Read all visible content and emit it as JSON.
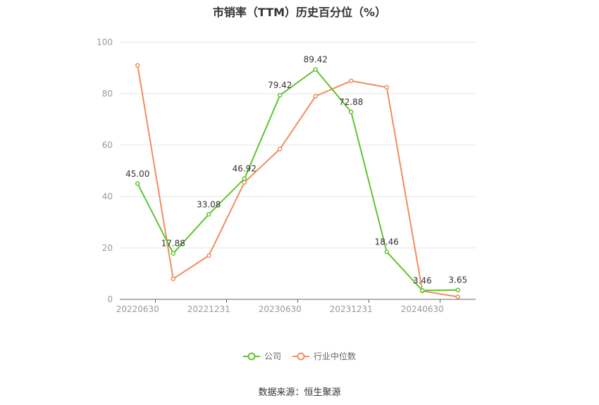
{
  "chart_data": {
    "type": "line",
    "title": "市销率（TTM）历史百分位（%）",
    "x": [
      "20220630",
      "20220930",
      "20221231",
      "20230331",
      "20230630",
      "20230930",
      "20231231",
      "20240331",
      "20240630",
      "20240930"
    ],
    "tick_labels": [
      "20220630",
      "20221231",
      "20230630",
      "20231231",
      "20240630"
    ],
    "y_ticks": [
      "0",
      "20",
      "40",
      "60",
      "80",
      "100"
    ],
    "ylim": [
      0,
      100
    ],
    "grid": true,
    "legend_position": "bottom-center",
    "series": [
      {
        "name": "公司",
        "color": "#5ec531",
        "values": [
          45.0,
          17.88,
          33.08,
          46.92,
          79.42,
          89.42,
          72.88,
          18.46,
          3.46,
          3.65
        ],
        "labels": [
          "45.00",
          "17.88",
          "33.08",
          "46.92",
          "79.42",
          "89.42",
          "72.88",
          "18.46",
          "3.46",
          "3.65"
        ]
      },
      {
        "name": "行业中位数",
        "color": "#f08e5f",
        "values": [
          91.0,
          8.0,
          17.0,
          45.5,
          58.5,
          79.0,
          85.0,
          82.5,
          3.3,
          1.0
        ]
      }
    ]
  },
  "source_text": "数据来源：恒生聚源"
}
